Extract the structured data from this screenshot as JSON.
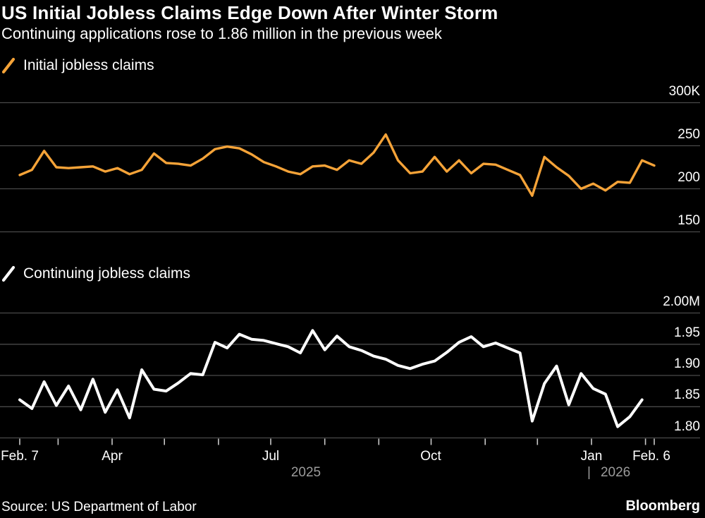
{
  "header": {
    "title": "US Initial Jobless Claims Edge Down After Winter Storm",
    "subtitle": "Continuing applications rose to 1.86 million in the previous week"
  },
  "footer": {
    "source": "Source: US Department of Labor",
    "brand": "Bloomberg"
  },
  "x_axis": {
    "tick_labels": [
      "Feb. 7",
      "Apr",
      "Jul",
      "Oct",
      "Jan",
      "Feb. 6"
    ],
    "year_labels": [
      "2025",
      "2026"
    ],
    "year_divider": "|"
  },
  "colors": {
    "background": "#000000",
    "grid": "#494949",
    "tick": "#c9c9c9",
    "text": "#ffffff",
    "muted_text": "#9b9b9b",
    "initial_claims": "#f5a338",
    "continuing_claims": "#ffffff"
  },
  "chart_data": [
    {
      "type": "line",
      "title": "Initial jobless claims",
      "legend_position": "top-left",
      "grid": true,
      "ylim": [
        150,
        300
      ],
      "yticks": [
        300,
        250,
        200,
        150
      ],
      "ytick_labels": [
        "300K",
        "250",
        "200",
        "150"
      ],
      "color": "#f5a338",
      "values": [
        216,
        222,
        244,
        225,
        224,
        225,
        226,
        220,
        224,
        217,
        222,
        241,
        230,
        229,
        227,
        235,
        246,
        249,
        247,
        240,
        231,
        226,
        220,
        217,
        226,
        227,
        222,
        233,
        229,
        242,
        263,
        233,
        218,
        220,
        237,
        220,
        233,
        218,
        229,
        228,
        222,
        216,
        192,
        237,
        225,
        215,
        200,
        206,
        198,
        208,
        207,
        233,
        227
      ]
    },
    {
      "type": "line",
      "title": "Continuing jobless claims",
      "legend_position": "top-left",
      "grid": true,
      "ylim": [
        1.8,
        2.0
      ],
      "yticks": [
        2.0,
        1.95,
        1.9,
        1.85,
        1.8
      ],
      "ytick_labels": [
        "2.00M",
        "1.95",
        "1.90",
        "1.85",
        "1.80"
      ],
      "color": "#ffffff",
      "values": [
        1.861,
        1.847,
        1.89,
        1.852,
        1.883,
        1.845,
        1.894,
        1.841,
        1.877,
        1.832,
        1.909,
        1.878,
        1.875,
        1.888,
        1.903,
        1.901,
        1.953,
        1.944,
        1.966,
        1.958,
        1.956,
        1.951,
        1.946,
        1.936,
        1.972,
        1.941,
        1.963,
        1.946,
        1.94,
        1.931,
        1.926,
        1.916,
        1.911,
        1.918,
        1.923,
        1.937,
        1.953,
        1.962,
        1.946,
        1.952,
        1.944,
        1.936,
        1.827,
        1.887,
        1.915,
        1.853,
        1.903,
        1.879,
        1.87,
        1.818,
        1.834,
        1.861
      ]
    }
  ]
}
